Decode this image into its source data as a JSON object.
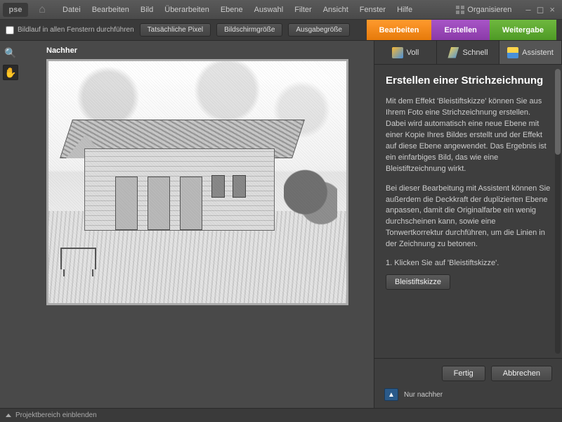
{
  "app": {
    "logo_text": "pse"
  },
  "menu": {
    "items": [
      "Datei",
      "Bearbeiten",
      "Bild",
      "Überarbeiten",
      "Ebene",
      "Auswahl",
      "Filter",
      "Ansicht",
      "Fenster",
      "Hilfe"
    ],
    "organize": "Organisieren"
  },
  "toolbar": {
    "scroll_all_label": "Bildlauf in allen Fenstern durchführen",
    "btns": [
      "Tatsächliche Pixel",
      "Bildschirmgröße",
      "Ausgabegröße"
    ],
    "tabs": {
      "edit": "Bearbeiten",
      "create": "Erstellen",
      "share": "Weitergabe"
    }
  },
  "canvas": {
    "after_label": "Nachher"
  },
  "modes": {
    "full": "Voll",
    "quick": "Schnell",
    "assist": "Assistent"
  },
  "panel": {
    "title": "Erstellen einer Strichzeichnung",
    "p1": "Mit dem Effekt 'Bleistiftskizze' können Sie aus Ihrem Foto eine Strichzeichnung erstellen. Dabei wird automatisch eine neue Ebene mit einer Kopie Ihres Bildes erstellt und der Effekt auf diese Ebene angewendet. Das Ergebnis ist ein einfarbiges Bild, das wie eine Bleistiftzeichnung wirkt.",
    "p2": "Bei dieser Bearbeitung mit Assistent können Sie außerdem die Deckkraft der duplizierten Ebene anpassen, damit die Originalfarbe ein wenig durchscheinen kann, sowie eine Tonwertkorrektur durchführen, um die Linien in der Zeichnung zu betonen.",
    "step1": "1. Klicken Sie auf 'Bleistiftskizze'.",
    "sketch_btn": "Bleistiftskizze",
    "done": "Fertig",
    "cancel": "Abbrechen",
    "view_mode": "Nur nachher"
  },
  "status": {
    "project_area": "Projektbereich einblenden"
  },
  "colors": {
    "bg": "#494949",
    "dark": "#3a3a3a",
    "accent_orange": "#f28a1c",
    "accent_purple": "#9a4bb8",
    "accent_green": "#5faa32"
  }
}
